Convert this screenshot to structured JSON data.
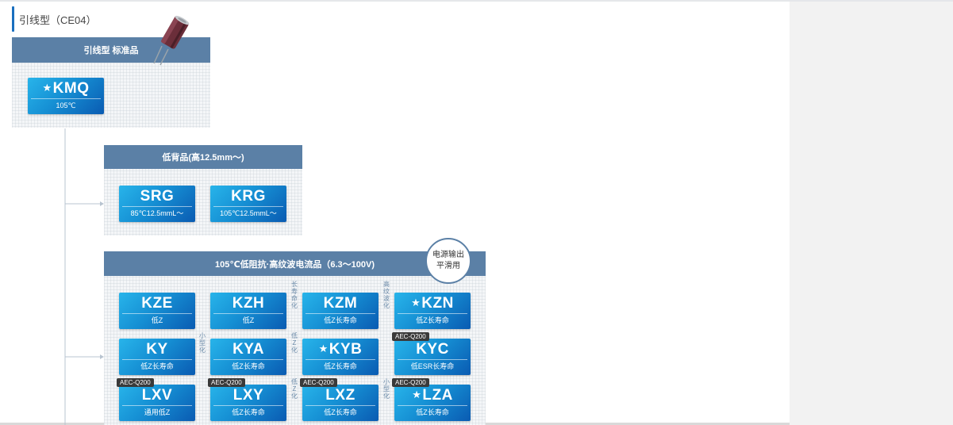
{
  "section_title": "引线型（CE04）",
  "groups": {
    "standard": {
      "title": "引线型 标准品"
    },
    "low_profile": {
      "title": "低背品(高12.5mm～)"
    },
    "low_impedance": {
      "title": "105℃低阻抗·高纹波电流品（6.3～100V)",
      "callout": "电源输出\n平滑用"
    }
  },
  "products": {
    "kmq": {
      "name": "KMQ",
      "star": true,
      "sub": "105℃"
    },
    "srg": {
      "name": "SRG",
      "sub": "85℃12.5mmL～"
    },
    "krg": {
      "name": "KRG",
      "sub": "105℃12.5mmL～"
    },
    "kze": {
      "name": "KZE",
      "sub": "低Z"
    },
    "kzh": {
      "name": "KZH",
      "sub": "低Z"
    },
    "kzm": {
      "name": "KZM",
      "sub": "低Z长寿命"
    },
    "kzn": {
      "name": "KZN",
      "star": true,
      "sub": "低Z长寿命"
    },
    "ky": {
      "name": "KY",
      "sub": "低Z长寿命"
    },
    "kya": {
      "name": "KYA",
      "sub": "低Z长寿命"
    },
    "kyb": {
      "name": "KYB",
      "star": true,
      "sub": "低Z长寿命"
    },
    "kyc": {
      "name": "KYC",
      "sub": "低ESR长寿命",
      "badge": "AEC-Q200"
    },
    "lxv": {
      "name": "LXV",
      "sub": "通用低Z",
      "badge": "AEC-Q200"
    },
    "lxy": {
      "name": "LXY",
      "sub": "低Z长寿命",
      "badge": "AEC-Q200"
    },
    "lxz": {
      "name": "LXZ",
      "sub": "低Z长寿命",
      "badge": "AEC-Q200"
    },
    "lza": {
      "name": "LZA",
      "star": true,
      "sub": "低Z长寿命",
      "badge": "AEC-Q200"
    }
  },
  "transitions": {
    "long_life": "长寿命化",
    "high_ripple": "高纹波化",
    "miniaturize": "小型化",
    "low_z": "低Z化"
  },
  "star_glyph": "★",
  "colors": {
    "header": "#5b80a6",
    "card_light": "#28b4ea",
    "card_dark": "#0a5bb2",
    "accent": "#1a6fbf"
  }
}
